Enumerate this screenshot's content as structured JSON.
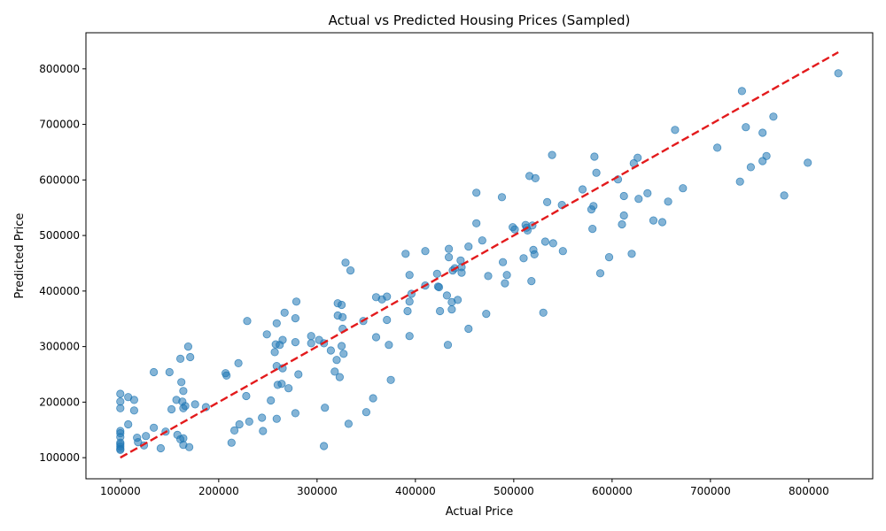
{
  "chart_data": {
    "type": "scatter",
    "title": "Actual vs Predicted Housing Prices (Sampled)",
    "xlabel": "Actual Price",
    "ylabel": "Predicted Price",
    "xlim": [
      65000,
      865000
    ],
    "ylim": [
      62000,
      865000
    ],
    "xticks": [
      100000,
      200000,
      300000,
      400000,
      500000,
      600000,
      700000,
      800000
    ],
    "yticks": [
      100000,
      200000,
      300000,
      400000,
      500000,
      600000,
      700000,
      800000
    ],
    "xtick_labels": [
      "100000",
      "200000",
      "300000",
      "400000",
      "500000",
      "600000",
      "700000",
      "800000"
    ],
    "ytick_labels": [
      "100000",
      "200000",
      "300000",
      "400000",
      "500000",
      "600000",
      "700000",
      "800000"
    ],
    "grid": false,
    "point_color": "#1f77b4",
    "line_color": "#e31a1c",
    "reference_line": {
      "style": "dashed",
      "x": [
        100000,
        830000
      ],
      "y": [
        100000,
        830000
      ]
    },
    "points": [
      [
        830000,
        792000
      ],
      [
        732000,
        760000
      ],
      [
        764000,
        714000
      ],
      [
        736000,
        695000
      ],
      [
        753000,
        685000
      ],
      [
        664000,
        690000
      ],
      [
        707000,
        658000
      ],
      [
        757000,
        643000
      ],
      [
        753000,
        634000
      ],
      [
        741000,
        623000
      ],
      [
        799000,
        631000
      ],
      [
        730000,
        597000
      ],
      [
        775000,
        572000
      ],
      [
        539000,
        645000
      ],
      [
        582000,
        642000
      ],
      [
        626000,
        640000
      ],
      [
        622000,
        630000
      ],
      [
        584000,
        613000
      ],
      [
        516000,
        607000
      ],
      [
        522000,
        603000
      ],
      [
        606000,
        601000
      ],
      [
        570000,
        583000
      ],
      [
        672000,
        585000
      ],
      [
        636000,
        576000
      ],
      [
        612000,
        571000
      ],
      [
        627000,
        566000
      ],
      [
        657000,
        561000
      ],
      [
        462000,
        577000
      ],
      [
        488000,
        569000
      ],
      [
        534000,
        560000
      ],
      [
        549000,
        555000
      ],
      [
        581000,
        553000
      ],
      [
        579000,
        547000
      ],
      [
        612000,
        536000
      ],
      [
        642000,
        527000
      ],
      [
        651000,
        524000
      ],
      [
        462000,
        522000
      ],
      [
        512000,
        519000
      ],
      [
        519000,
        518000
      ],
      [
        610000,
        520000
      ],
      [
        499000,
        515000
      ],
      [
        513000,
        514000
      ],
      [
        501000,
        511000
      ],
      [
        514000,
        509000
      ],
      [
        580000,
        512000
      ],
      [
        468000,
        491000
      ],
      [
        532000,
        489000
      ],
      [
        540000,
        486000
      ],
      [
        454000,
        480000
      ],
      [
        434000,
        476000
      ],
      [
        410000,
        472000
      ],
      [
        520000,
        474000
      ],
      [
        550000,
        472000
      ],
      [
        390000,
        467000
      ],
      [
        521000,
        466000
      ],
      [
        620000,
        467000
      ],
      [
        597000,
        461000
      ],
      [
        434000,
        461000
      ],
      [
        510000,
        459000
      ],
      [
        446000,
        455000
      ],
      [
        489000,
        452000
      ],
      [
        329000,
        451000
      ],
      [
        447000,
        443000
      ],
      [
        440000,
        441000
      ],
      [
        438000,
        437000
      ],
      [
        334000,
        437000
      ],
      [
        447000,
        433000
      ],
      [
        588000,
        432000
      ],
      [
        493000,
        429000
      ],
      [
        394000,
        429000
      ],
      [
        474000,
        427000
      ],
      [
        422000,
        431000
      ],
      [
        518000,
        418000
      ],
      [
        491000,
        414000
      ],
      [
        410000,
        410000
      ],
      [
        423000,
        408000
      ],
      [
        424000,
        407000
      ],
      [
        432000,
        392000
      ],
      [
        396000,
        395000
      ],
      [
        360000,
        389000
      ],
      [
        371000,
        390000
      ],
      [
        279000,
        381000
      ],
      [
        366000,
        385000
      ],
      [
        394000,
        381000
      ],
      [
        443000,
        384000
      ],
      [
        437000,
        380000
      ],
      [
        321000,
        378000
      ],
      [
        325000,
        375000
      ],
      [
        392000,
        364000
      ],
      [
        437000,
        367000
      ],
      [
        425000,
        364000
      ],
      [
        267000,
        361000
      ],
      [
        472000,
        359000
      ],
      [
        530000,
        361000
      ],
      [
        321000,
        356000
      ],
      [
        326000,
        353000
      ],
      [
        278000,
        351000
      ],
      [
        229000,
        346000
      ],
      [
        347000,
        346000
      ],
      [
        371000,
        348000
      ],
      [
        259000,
        342000
      ],
      [
        326000,
        332000
      ],
      [
        454000,
        332000
      ],
      [
        249000,
        322000
      ],
      [
        294000,
        319000
      ],
      [
        360000,
        317000
      ],
      [
        394000,
        319000
      ],
      [
        265000,
        312000
      ],
      [
        302000,
        312000
      ],
      [
        278000,
        308000
      ],
      [
        294000,
        306000
      ],
      [
        307000,
        306000
      ],
      [
        258000,
        304000
      ],
      [
        262000,
        303000
      ],
      [
        325000,
        301000
      ],
      [
        373000,
        303000
      ],
      [
        433000,
        303000
      ],
      [
        169000,
        300000
      ],
      [
        314000,
        293000
      ],
      [
        257000,
        290000
      ],
      [
        327000,
        287000
      ],
      [
        171000,
        281000
      ],
      [
        161000,
        278000
      ],
      [
        320000,
        276000
      ],
      [
        220000,
        270000
      ],
      [
        259000,
        265000
      ],
      [
        265000,
        261000
      ],
      [
        318000,
        255000
      ],
      [
        134000,
        254000
      ],
      [
        150000,
        254000
      ],
      [
        207000,
        252000
      ],
      [
        208000,
        248000
      ],
      [
        281000,
        250000
      ],
      [
        323000,
        245000
      ],
      [
        375000,
        240000
      ],
      [
        162000,
        236000
      ],
      [
        264000,
        233000
      ],
      [
        260000,
        231000
      ],
      [
        271000,
        225000
      ],
      [
        164000,
        220000
      ],
      [
        100000,
        215000
      ],
      [
        108000,
        209000
      ],
      [
        228000,
        211000
      ],
      [
        114000,
        204000
      ],
      [
        157000,
        204000
      ],
      [
        253000,
        203000
      ],
      [
        357000,
        207000
      ],
      [
        100000,
        201000
      ],
      [
        163000,
        201000
      ],
      [
        176000,
        196000
      ],
      [
        166000,
        193000
      ],
      [
        187000,
        191000
      ],
      [
        100000,
        189000
      ],
      [
        308000,
        190000
      ],
      [
        152000,
        187000
      ],
      [
        164000,
        189000
      ],
      [
        114000,
        185000
      ],
      [
        350000,
        182000
      ],
      [
        278000,
        180000
      ],
      [
        244000,
        172000
      ],
      [
        259000,
        170000
      ],
      [
        231000,
        165000
      ],
      [
        332000,
        161000
      ],
      [
        108000,
        160000
      ],
      [
        221000,
        160000
      ],
      [
        134000,
        154000
      ],
      [
        216000,
        149000
      ],
      [
        245000,
        148000
      ],
      [
        100000,
        148000
      ],
      [
        146000,
        147000
      ],
      [
        100000,
        144000
      ],
      [
        158000,
        141000
      ],
      [
        126000,
        139000
      ],
      [
        100000,
        137000
      ],
      [
        117000,
        136000
      ],
      [
        164000,
        135000
      ],
      [
        161000,
        133000
      ],
      [
        118000,
        128000
      ],
      [
        100000,
        127000
      ],
      [
        213000,
        127000
      ],
      [
        164000,
        123000
      ],
      [
        100000,
        124000
      ],
      [
        124000,
        122000
      ],
      [
        307000,
        121000
      ],
      [
        100000,
        120000
      ],
      [
        170000,
        119000
      ],
      [
        141000,
        117000
      ],
      [
        100000,
        116000
      ],
      [
        100000,
        114000
      ]
    ]
  }
}
